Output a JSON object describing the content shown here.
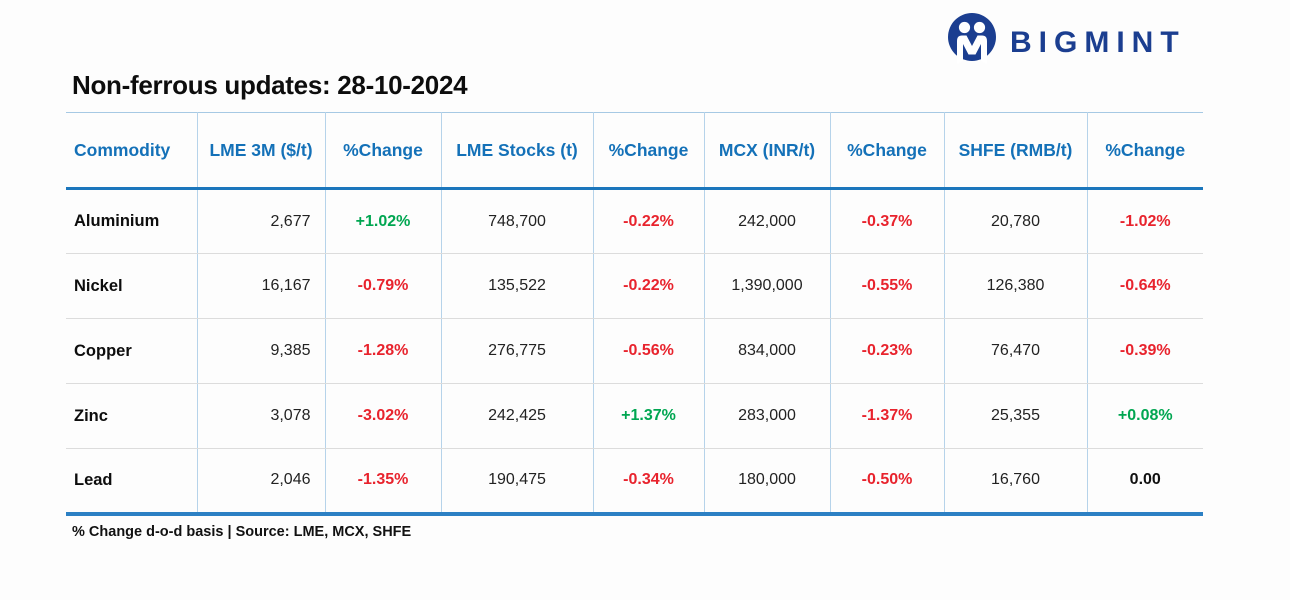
{
  "brand": {
    "name": "BIGMINT"
  },
  "page": {
    "title": "Non-ferrous updates: 28-10-2024"
  },
  "footer": {
    "note": "% Change d-o-d basis | Source: LME, MCX, SHFE"
  },
  "colors": {
    "header_text": "#1471b8",
    "header_rule": "#1b76bc",
    "positive": "#00a651",
    "negative": "#e8232d",
    "brand_navy": "#1b3e90"
  },
  "chart_data": {
    "type": "table",
    "title": "Non-ferrous updates: 28-10-2024",
    "columns": [
      "Commodity",
      "LME 3M ($/t)",
      "%Change",
      "LME Stocks (t)",
      "%Change",
      "MCX (INR/t)",
      "%Change",
      "SHFE (RMB/t)",
      "%Change"
    ],
    "rows": [
      [
        "Aluminium",
        "2,677",
        "+1.02%",
        "748,700",
        "-0.22%",
        "242,000",
        "-0.37%",
        "20,780",
        "-1.02%"
      ],
      [
        "Nickel",
        "16,167",
        "-0.79%",
        "135,522",
        "-0.22%",
        "1,390,000",
        "-0.55%",
        "126,380",
        "-0.64%"
      ],
      [
        "Copper",
        "9,385",
        "-1.28%",
        "276,775",
        "-0.56%",
        "834,000",
        "-0.23%",
        "76,470",
        "-0.39%"
      ],
      [
        "Zinc",
        "3,078",
        "-3.02%",
        "242,425",
        "+1.37%",
        "283,000",
        "-1.37%",
        "25,355",
        "+0.08%"
      ],
      [
        "Lead",
        "2,046",
        "-1.35%",
        "190,475",
        "-0.34%",
        "180,000",
        "-0.50%",
        "16,760",
        "0.00"
      ]
    ],
    "note": "% Change d-o-d basis | Source: LME, MCX, SHFE"
  }
}
